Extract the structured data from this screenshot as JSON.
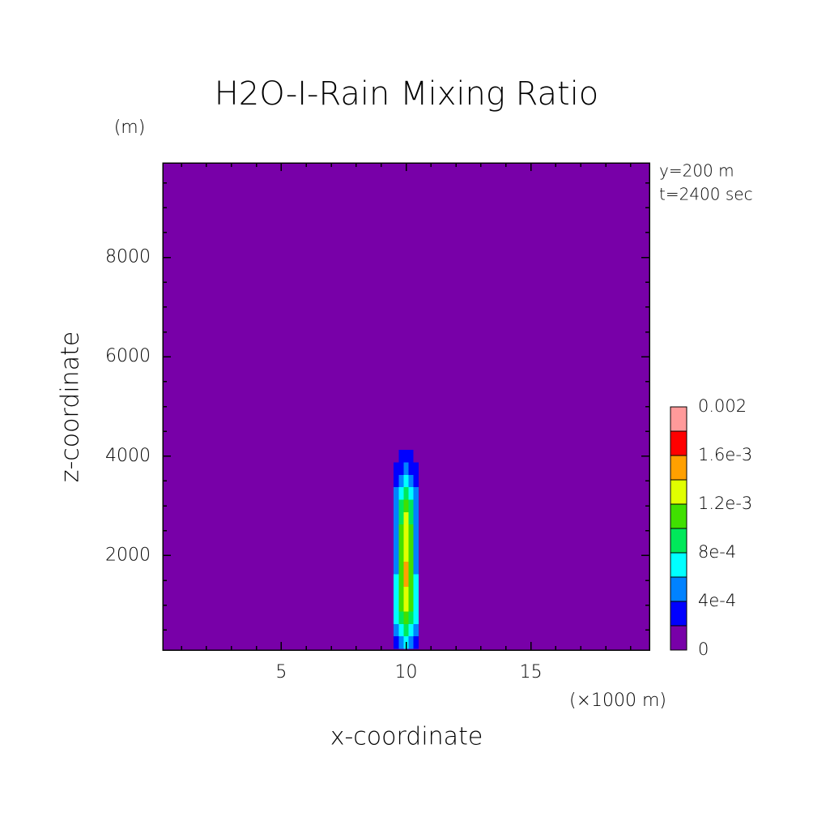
{
  "chart_data": {
    "type": "contour",
    "title": "H2O-I-Rain Mixing Ratio",
    "xlabel": "x-coordinate",
    "ylabel": "z-coordinate",
    "xunit": "(×1000 m)",
    "yunit": "(m)",
    "annotations": [
      "y=200 m",
      "t=2400 sec"
    ],
    "xlim": [
      0.25,
      19.75
    ],
    "ylim": [
      100,
      9900
    ],
    "xticks": [
      5,
      10,
      15
    ],
    "yticks": [
      2000,
      4000,
      6000,
      8000
    ],
    "xminorticks": [
      1,
      2,
      3,
      4,
      6,
      7,
      8,
      9,
      11,
      12,
      13,
      14,
      16,
      17,
      18,
      19
    ],
    "yminorticks": [
      500,
      1000,
      1500,
      2500,
      3000,
      3500,
      4500,
      5000,
      5500,
      6500,
      7000,
      7500,
      8500,
      9000,
      9500
    ],
    "x": [
      9.6,
      9.8,
      10.0,
      10.2,
      10.4
    ],
    "y": [
      250,
      500,
      750,
      1000,
      1250,
      1500,
      1750,
      2000,
      2250,
      2500,
      2750,
      3000,
      3250,
      3500,
      3750,
      4000
    ],
    "z": [
      [
        0.0003,
        0.0005,
        0.0006,
        0.0005,
        0.0003
      ],
      [
        0.0005,
        0.0007,
        0.0009,
        0.0007,
        0.0005
      ],
      [
        0.0007,
        0.0009,
        0.0011,
        0.0009,
        0.0007
      ],
      [
        0.0007,
        0.0011,
        0.0013,
        0.0011,
        0.0007
      ],
      [
        0.0007,
        0.0011,
        0.0013,
        0.0011,
        0.0007
      ],
      [
        0.0007,
        0.0011,
        0.0015,
        0.0011,
        0.0007
      ],
      [
        0.0005,
        0.0011,
        0.0015,
        0.0011,
        0.0005
      ],
      [
        0.0005,
        0.0011,
        0.0013,
        0.0011,
        0.0005
      ],
      [
        0.0005,
        0.0011,
        0.0013,
        0.0011,
        0.0005
      ],
      [
        0.0005,
        0.0011,
        0.0013,
        0.0011,
        0.0005
      ],
      [
        0.0005,
        0.0009,
        0.0013,
        0.0009,
        0.0005
      ],
      [
        0.0005,
        0.0009,
        0.0011,
        0.0009,
        0.0005
      ],
      [
        0.0005,
        0.0007,
        0.0009,
        0.0007,
        0.0005
      ],
      [
        0.0003,
        0.0005,
        0.0007,
        0.0005,
        0.0003
      ],
      [
        0.0003,
        0.0003,
        0.0005,
        0.0003,
        0.0003
      ],
      [
        0,
        0.0003,
        0.0003,
        0.0003,
        0
      ]
    ],
    "levels": [
      0,
      0.0002,
      0.0004,
      0.0006,
      0.0008,
      0.001,
      0.0012,
      0.0014,
      0.0016,
      0.0018,
      0.002
    ],
    "colors": [
      "#7800a8",
      "#0000ff",
      "#0082ff",
      "#00ffff",
      "#00e85a",
      "#40e000",
      "#e0ff00",
      "#ffa000",
      "#ff0000",
      "#ff9a9a"
    ],
    "colorbar_ticks": [
      0,
      {
        "value": 0.0004,
        "label": "4e-4"
      },
      {
        "value": 0.0008,
        "label": "8e-4"
      },
      {
        "value": 0.0012,
        "label": "1.2e-3"
      },
      {
        "value": 0.0016,
        "label": "1.6e-3"
      },
      0.002
    ]
  }
}
